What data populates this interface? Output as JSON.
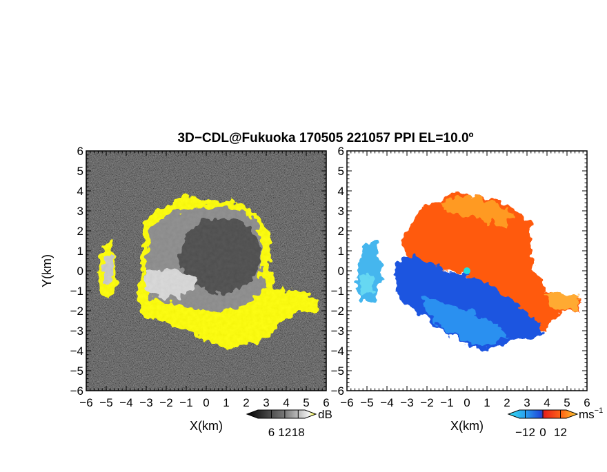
{
  "title": "3D−CDL@Fukuoka 170505 221057 PPI EL=10.0º",
  "chart_data": [
    {
      "type": "heatmap",
      "panel": "left",
      "quantity": "SNR",
      "xlabel": "X(km)",
      "ylabel": "Y(km)",
      "xlim": [
        -6,
        6
      ],
      "ylim": [
        -6,
        6
      ],
      "x_tick_labels": [
        "−6",
        "−5",
        "−4",
        "−3",
        "−2",
        "−1",
        "0",
        "1",
        "2",
        "3",
        "4",
        "5",
        "6"
      ],
      "y_tick_labels": [
        "6",
        "5",
        "4",
        "3",
        "2",
        "1",
        "0",
        "−1",
        "−2",
        "−3",
        "−4",
        "−5",
        "−6"
      ],
      "colorbar": {
        "unit": "dB",
        "ticks": [
          "6",
          "12",
          "18"
        ],
        "range": [
          0,
          21
        ]
      },
      "colors": {
        "background_noise": "#1c1c1c",
        "echo_low": "#3a3a3a",
        "echo_high": "#e6e6e6",
        "saturation": "#ffff00"
      }
    },
    {
      "type": "heatmap",
      "panel": "right",
      "quantity": "Doppler velocity",
      "xlabel": "X(km)",
      "ylabel": "",
      "xlim": [
        -6,
        6
      ],
      "ylim": [
        -6,
        6
      ],
      "x_tick_labels": [
        "−6",
        "−5",
        "−4",
        "−3",
        "−2",
        "−1",
        "0",
        "1",
        "2",
        "3",
        "4",
        "5",
        "6"
      ],
      "y_tick_labels": [
        "6",
        "5",
        "4",
        "3",
        "2",
        "1",
        "0",
        "−1",
        "−2",
        "−3",
        "−4",
        "−5",
        "−6"
      ],
      "colorbar": {
        "unit": "ms",
        "unit_exponent": "−1",
        "ticks": [
          "−12",
          "0",
          "12"
        ],
        "range": [
          -16,
          16
        ]
      },
      "colors": {
        "negative": "#1f5fe0",
        "negative_far": "#33ccee",
        "positive": "#ff3a12",
        "positive_far": "#ffaa22",
        "center": "#22dddd"
      }
    }
  ]
}
